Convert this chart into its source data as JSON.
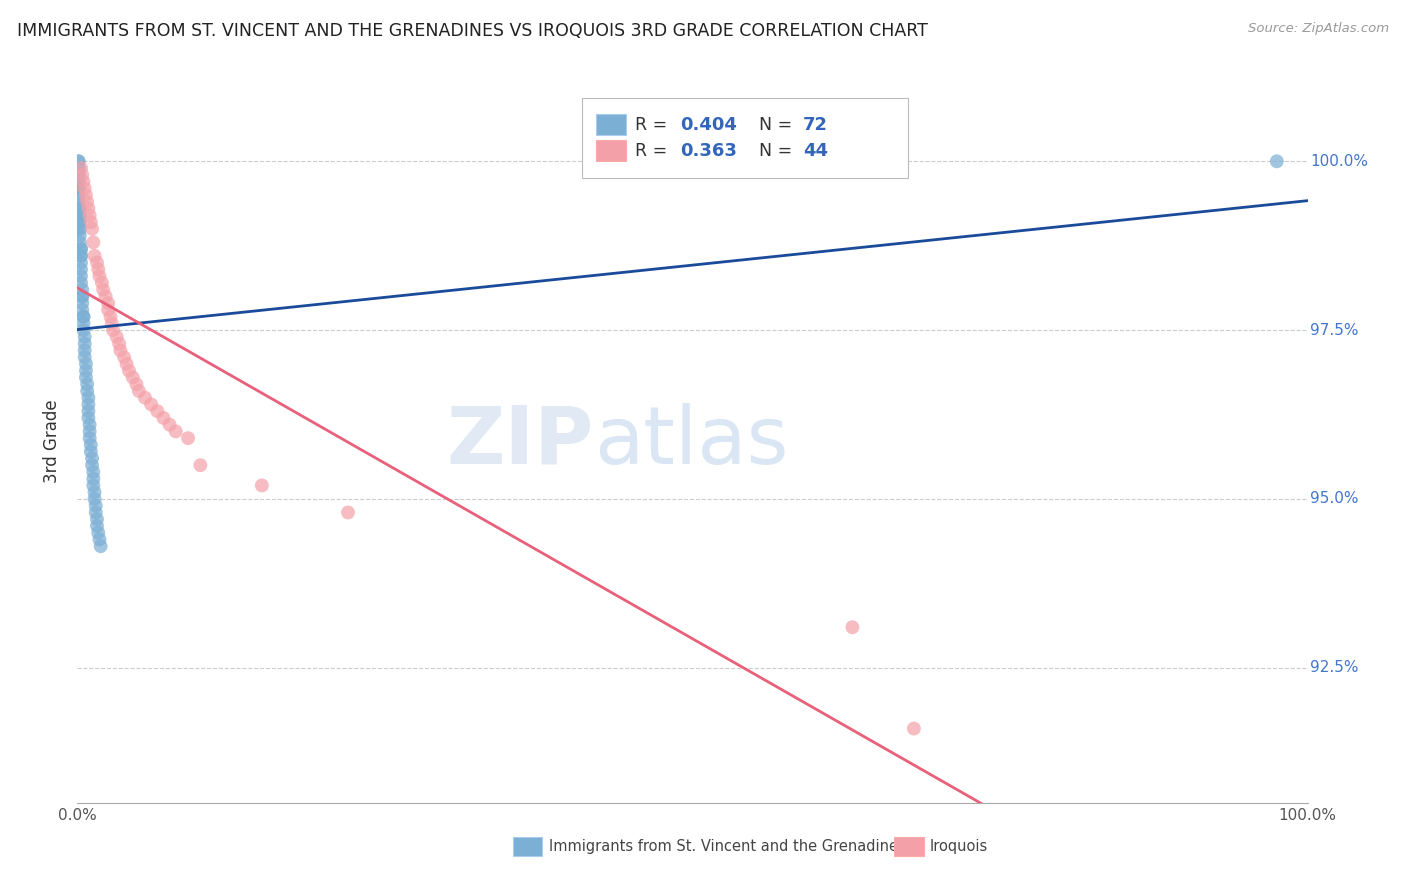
{
  "title": "IMMIGRANTS FROM ST. VINCENT AND THE GRENADINES VS IROQUOIS 3RD GRADE CORRELATION CHART",
  "source": "Source: ZipAtlas.com",
  "ylabel": "3rd Grade",
  "yticks_labels": [
    "100.0%",
    "97.5%",
    "95.0%",
    "92.5%"
  ],
  "ytick_vals": [
    1.0,
    0.975,
    0.95,
    0.925
  ],
  "xrange": [
    0.0,
    1.0
  ],
  "yrange": [
    0.905,
    1.012
  ],
  "blue_R": 0.404,
  "blue_N": 72,
  "pink_R": 0.363,
  "pink_N": 44,
  "blue_color": "#7BAFD4",
  "pink_color": "#F4A0A8",
  "blue_line_color": "#1A4A9A",
  "pink_line_color": "#E8607A",
  "legend_label_blue": "Immigrants from St. Vincent and the Grenadines",
  "legend_label_pink": "Iroquois",
  "watermark_zip": "ZIP",
  "watermark_atlas": "atlas",
  "blue_x": [
    0.001,
    0.001,
    0.001,
    0.001,
    0.001,
    0.001,
    0.001,
    0.001,
    0.001,
    0.001,
    0.001,
    0.001,
    0.002,
    0.002,
    0.002,
    0.002,
    0.002,
    0.002,
    0.002,
    0.002,
    0.002,
    0.002,
    0.003,
    0.003,
    0.003,
    0.003,
    0.003,
    0.003,
    0.003,
    0.003,
    0.004,
    0.004,
    0.004,
    0.004,
    0.004,
    0.005,
    0.005,
    0.005,
    0.005,
    0.006,
    0.006,
    0.006,
    0.006,
    0.007,
    0.007,
    0.007,
    0.008,
    0.008,
    0.009,
    0.009,
    0.009,
    0.009,
    0.01,
    0.01,
    0.01,
    0.011,
    0.011,
    0.012,
    0.012,
    0.013,
    0.013,
    0.013,
    0.014,
    0.014,
    0.015,
    0.015,
    0.016,
    0.016,
    0.017,
    0.018,
    0.019,
    0.975
  ],
  "blue_y": [
    1.0,
    1.0,
    0.999,
    0.999,
    0.998,
    0.998,
    0.997,
    0.997,
    0.996,
    0.996,
    0.995,
    0.994,
    0.993,
    0.993,
    0.992,
    0.992,
    0.991,
    0.991,
    0.99,
    0.99,
    0.989,
    0.988,
    0.987,
    0.987,
    0.986,
    0.986,
    0.985,
    0.984,
    0.983,
    0.982,
    0.981,
    0.98,
    0.98,
    0.979,
    0.978,
    0.977,
    0.977,
    0.976,
    0.975,
    0.974,
    0.973,
    0.972,
    0.971,
    0.97,
    0.969,
    0.968,
    0.967,
    0.966,
    0.965,
    0.964,
    0.963,
    0.962,
    0.961,
    0.96,
    0.959,
    0.958,
    0.957,
    0.956,
    0.955,
    0.954,
    0.953,
    0.952,
    0.951,
    0.95,
    0.949,
    0.948,
    0.947,
    0.946,
    0.945,
    0.944,
    0.943,
    1.0
  ],
  "pink_x": [
    0.003,
    0.004,
    0.005,
    0.006,
    0.007,
    0.008,
    0.009,
    0.01,
    0.011,
    0.012,
    0.013,
    0.014,
    0.016,
    0.017,
    0.018,
    0.02,
    0.021,
    0.023,
    0.025,
    0.025,
    0.027,
    0.028,
    0.029,
    0.032,
    0.034,
    0.035,
    0.038,
    0.04,
    0.042,
    0.045,
    0.048,
    0.05,
    0.055,
    0.06,
    0.065,
    0.07,
    0.075,
    0.08,
    0.09,
    0.1,
    0.15,
    0.22,
    0.63,
    0.68
  ],
  "pink_y": [
    0.999,
    0.998,
    0.997,
    0.996,
    0.995,
    0.994,
    0.993,
    0.992,
    0.991,
    0.99,
    0.988,
    0.986,
    0.985,
    0.984,
    0.983,
    0.982,
    0.981,
    0.98,
    0.979,
    0.978,
    0.977,
    0.976,
    0.975,
    0.974,
    0.973,
    0.972,
    0.971,
    0.97,
    0.969,
    0.968,
    0.967,
    0.966,
    0.965,
    0.964,
    0.963,
    0.962,
    0.961,
    0.96,
    0.959,
    0.955,
    0.952,
    0.948,
    0.931,
    0.916
  ]
}
